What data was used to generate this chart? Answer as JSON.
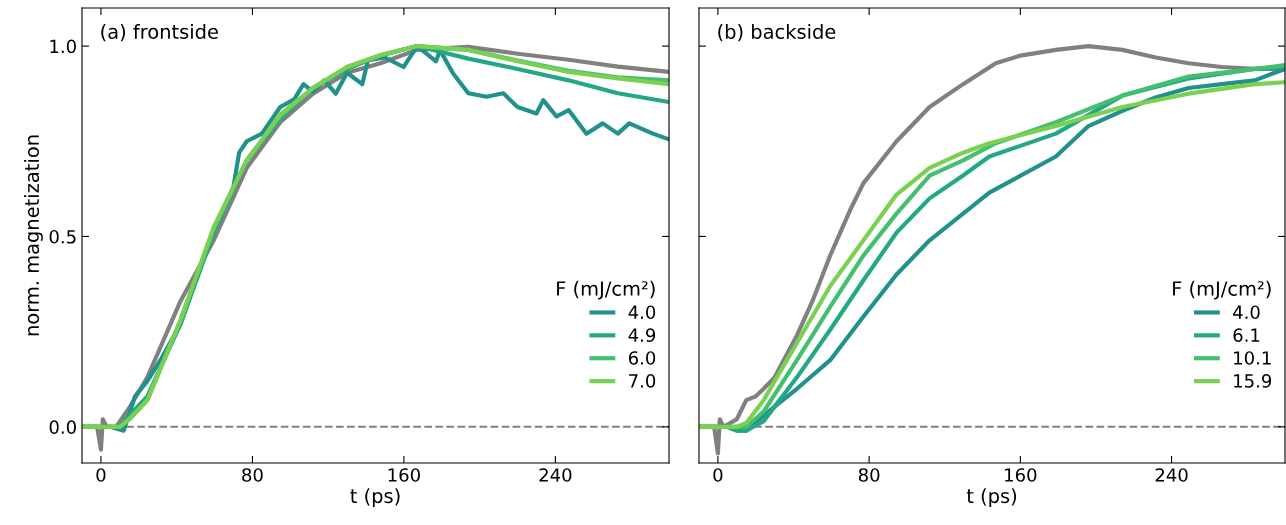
{
  "chart_data": [
    {
      "type": "line",
      "title": "(a) frontside",
      "xlabel": "t (ps)",
      "ylabel": "norm. magnetization",
      "legend_title": "F (mJ/cm²)",
      "legend": "lower right",
      "xlim": [
        -10,
        300
      ],
      "ylim": [
        -0.095,
        1.1
      ],
      "xticks": [
        0,
        80,
        160,
        240
      ],
      "yticks": [
        {
          "value": 0,
          "label": "0.0"
        },
        {
          "value": 0.5,
          "label": "0.5"
        },
        {
          "value": 1,
          "label": "1.0"
        }
      ],
      "ref_lines": [
        {
          "axis": "y",
          "value": 0,
          "label": null,
          "color": "#808080",
          "line_style": "dashed"
        }
      ],
      "series": [
        {
          "color": "#808080",
          "x": [
            -10,
            -2,
            0,
            1,
            3,
            8,
            15,
            24.5,
            42,
            59.6,
            77,
            94.7,
            112,
            130,
            147.6,
            167,
            194,
            220,
            247,
            273,
            300
          ],
          "values": [
            0,
            0,
            -0.06,
            0.02,
            0,
            0,
            0.05,
            0.13,
            0.33,
            0.49,
            0.68,
            0.8,
            0.875,
            0.93,
            0.955,
            0.99,
            0.998,
            0.98,
            0.964,
            0.946,
            0.932
          ]
        },
        {
          "name": "4.0",
          "color": "#21918c",
          "x": [
            -10,
            5,
            12,
            18,
            24.5,
            32,
            42,
            59.6,
            70,
            73,
            77,
            85,
            94.7,
            102,
            107,
            112,
            118,
            124,
            130,
            138,
            141,
            150,
            159.8,
            167,
            177,
            179,
            186,
            194,
            203.7,
            212.5,
            220,
            230,
            233.6,
            240.6,
            247,
            256.4,
            265,
            273,
            279,
            291.5,
            300
          ],
          "values": [
            0,
            0,
            -0.01,
            0.08,
            0.12,
            0.18,
            0.27,
            0.52,
            0.63,
            0.72,
            0.75,
            0.77,
            0.84,
            0.86,
            0.9,
            0.88,
            0.91,
            0.875,
            0.93,
            0.9,
            0.963,
            0.97,
            0.945,
            1.0,
            0.96,
            0.99,
            0.928,
            0.876,
            0.867,
            0.876,
            0.84,
            0.823,
            0.858,
            0.815,
            0.832,
            0.77,
            0.797,
            0.77,
            0.797,
            0.77,
            0.755
          ]
        },
        {
          "name": "4.9",
          "color": "#22a884",
          "x": [
            -10,
            5,
            10,
            15,
            24.5,
            42,
            59.6,
            77,
            94.7,
            112,
            130,
            147.6,
            167,
            194,
            220,
            247,
            273,
            300
          ],
          "values": [
            0,
            0,
            0,
            0.03,
            0.08,
            0.27,
            0.51,
            0.7,
            0.81,
            0.89,
            0.94,
            0.975,
            1.0,
            0.967,
            0.94,
            0.91,
            0.876,
            0.853
          ]
        },
        {
          "name": "6.0",
          "color": "#44bf70",
          "x": [
            -10,
            5,
            10,
            15,
            24.5,
            42,
            59.6,
            77,
            94.7,
            112,
            130,
            147.6,
            167,
            194,
            220,
            247,
            273,
            300
          ],
          "values": [
            0,
            0,
            0,
            0.02,
            0.07,
            0.28,
            0.52,
            0.7,
            0.815,
            0.89,
            0.945,
            0.976,
            1.0,
            0.99,
            0.962,
            0.935,
            0.918,
            0.91
          ]
        },
        {
          "name": "7.0",
          "color": "#7ad151",
          "x": [
            -10,
            5,
            10,
            15,
            24.5,
            42,
            59.6,
            77,
            94.7,
            112,
            130,
            147.6,
            167,
            194,
            220,
            247,
            273,
            300
          ],
          "values": [
            0,
            0,
            0,
            0.02,
            0.07,
            0.28,
            0.525,
            0.7,
            0.82,
            0.89,
            0.945,
            0.976,
            1.0,
            0.99,
            0.96,
            0.932,
            0.915,
            0.9
          ]
        }
      ]
    },
    {
      "type": "line",
      "title": "(b) backside",
      "xlabel": "t (ps)",
      "legend_title": "F (mJ/cm²)",
      "legend": "lower right",
      "tick_labels": "x",
      "xlim": [
        -10,
        300
      ],
      "ylim": [
        -0.095,
        1.1
      ],
      "xticks": [
        0,
        80,
        160,
        240
      ],
      "yticks": [
        0,
        0.5,
        1
      ],
      "ref_lines": [
        {
          "axis": "y",
          "value": 0,
          "label": null,
          "color": "#808080",
          "line_style": "dashed"
        }
      ],
      "series": [
        {
          "color": "#808080",
          "x": [
            -10,
            -2,
            0,
            1,
            3,
            10,
            15,
            20,
            24.2,
            30,
            41.8,
            50,
            59.4,
            70,
            77,
            94.5,
            112,
            129.7,
            147,
            160,
            178.8,
            196,
            214,
            231.6,
            249,
            266.6,
            284,
            300
          ],
          "values": [
            0,
            0,
            -0.07,
            0.02,
            0,
            0.02,
            0.07,
            0.08,
            0.1,
            0.13,
            0.24,
            0.33,
            0.45,
            0.57,
            0.64,
            0.75,
            0.84,
            0.9,
            0.955,
            0.975,
            0.99,
            1.0,
            0.99,
            0.97,
            0.955,
            0.945,
            0.94,
            0.94
          ]
        },
        {
          "name": "4.0",
          "color": "#21918c",
          "x": [
            -10,
            5,
            10,
            15,
            24.2,
            41.8,
            59.4,
            77,
            94.5,
            112,
            129.7,
            143.6,
            178.8,
            196,
            214,
            231.6,
            249,
            266.6,
            284,
            300
          ],
          "values": [
            0,
            0,
            -0.01,
            -0.01,
            0.03,
            0.1,
            0.175,
            0.29,
            0.4,
            0.49,
            0.56,
            0.615,
            0.71,
            0.79,
            0.83,
            0.865,
            0.89,
            0.9,
            0.91,
            0.94
          ]
        },
        {
          "name": "6.1",
          "color": "#22a884",
          "x": [
            -10,
            5,
            10,
            15,
            24.2,
            41.8,
            59.4,
            77,
            94.5,
            112,
            129.7,
            143.6,
            178.8,
            214,
            249,
            284,
            300
          ],
          "values": [
            0,
            0,
            -0.01,
            -0.01,
            0.015,
            0.13,
            0.255,
            0.385,
            0.51,
            0.6,
            0.66,
            0.71,
            0.77,
            0.87,
            0.915,
            0.94,
            0.945
          ]
        },
        {
          "name": "10.1",
          "color": "#44bf70",
          "x": [
            -10,
            5,
            10,
            15,
            24.2,
            41.8,
            59.4,
            77,
            94.5,
            112,
            129.7,
            147,
            178.8,
            214,
            249,
            284,
            300
          ],
          "values": [
            0,
            0,
            0,
            0.0,
            0.04,
            0.175,
            0.315,
            0.45,
            0.56,
            0.66,
            0.7,
            0.745,
            0.8,
            0.87,
            0.92,
            0.94,
            0.95
          ]
        },
        {
          "name": "15.9",
          "color": "#7ad151",
          "x": [
            -10,
            5,
            10,
            15,
            24.2,
            41.8,
            59.4,
            77,
            94.5,
            112,
            129.7,
            143.6,
            178.8,
            214,
            249,
            284,
            300
          ],
          "values": [
            0,
            0,
            0,
            0.01,
            0.07,
            0.22,
            0.37,
            0.49,
            0.61,
            0.68,
            0.72,
            0.745,
            0.79,
            0.84,
            0.875,
            0.9,
            0.905
          ]
        }
      ]
    }
  ]
}
